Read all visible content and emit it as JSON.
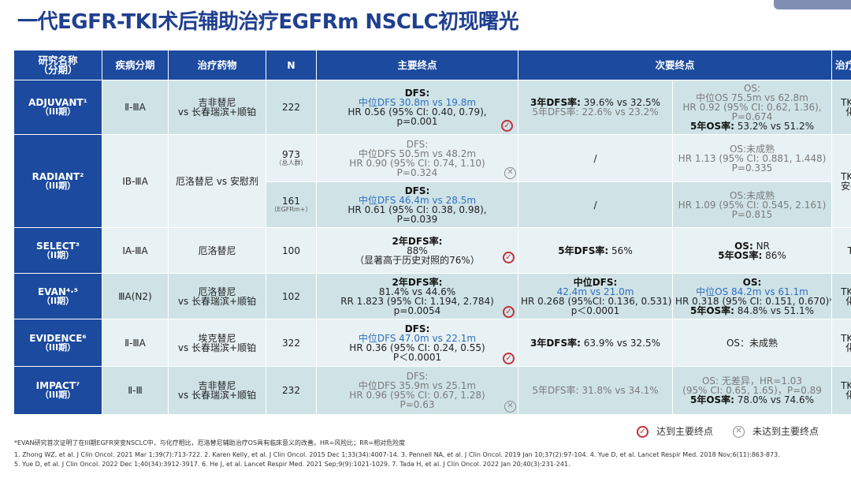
{
  "title": "一代EGFR-TKI术后辅助治疗EGFRm NSCLC初现曙光",
  "headers": {
    "study": [
      "研究名称",
      "（分期）"
    ],
    "stage": "疾病分期",
    "drug": "治疗药物",
    "n": "N",
    "primary": "主要终点",
    "secondary": "次要终点",
    "mode": "治疗模式"
  },
  "rows": {
    "adjuvant": {
      "name": "ADJUVANT¹",
      "phase": "（III期）",
      "stage": "Ⅱ-ⅢA",
      "drug": [
        "吉非替尼",
        "vs 长春瑞滨+顺铂"
      ],
      "n": "222",
      "primary": [
        "DFS:",
        "中位DFS 30.8m vs 19.8m",
        "HR 0.56 (95% CI: 0.40, 0.79),",
        "p=0.001"
      ],
      "sec1": [
        "3年DFS率:",
        "39.6% vs 32.5%"
      ],
      "sec1b": [
        "5年DFS率:",
        "22.6% vs 23.2%"
      ],
      "sec2": [
        "OS:",
        "中位OS 75.5m vs 62.8m",
        "HR 0.92 (95% CI: 0.62, 1.36),",
        "P=0.674"
      ],
      "sec2b": [
        "5年OS率:",
        "53.2% vs 51.2%"
      ],
      "mode": [
        "TKI vs",
        "化疗"
      ]
    },
    "radiant": {
      "name": "RADIANT²",
      "phase": "（III期）",
      "stage": "ⅠB-ⅢA",
      "drug": "厄洛替尼 vs 安慰剂",
      "mode": [
        "TKI vs",
        "安慰剂"
      ],
      "a": {
        "n": "973",
        "n_sub": "（总人群）",
        "primary": [
          "DFS:",
          "中位DFS 50.5m vs 48.2m",
          "HR 0.90 (95% CI: 0.74, 1.10)",
          "P=0.324"
        ],
        "sec1": "/",
        "sec2": [
          "OS:",
          "未成熟",
          "HR 1.13 (95% CI: 0.881, 1.448)",
          "P=0.335"
        ]
      },
      "b": {
        "n": "161",
        "n_sub": "（EGFRm+）",
        "primary": [
          "DFS:",
          "中位DFS 46.4m vs 28.5m",
          "HR 0.61 (95% CI: 0.38, 0.98),",
          "P=0.039"
        ],
        "sec1": "/",
        "sec2": [
          "OS:",
          "未成熟",
          "HR 1.09 (95% CI: 0.545, 2.161)",
          "P=0.815"
        ]
      }
    },
    "select": {
      "name": "SELECT³",
      "phase": "（II期）",
      "stage": "ⅠA-ⅢA",
      "drug": "厄洛替尼",
      "n": "100",
      "primary": [
        "2年DFS率:",
        "88%",
        "（显著高于历史对照的76%）"
      ],
      "sec1": [
        "5年DFS率:",
        "56%"
      ],
      "sec2a": [
        "OS:",
        "NR"
      ],
      "sec2b": [
        "5年OS率:",
        "86%"
      ],
      "mode": "TKI"
    },
    "evan": {
      "name": "EVAN⁴·⁵",
      "phase": "（II期）",
      "stage": "ⅢA(N2)",
      "drug": [
        "厄洛替尼",
        "vs 长春瑞滨+顺铂"
      ],
      "n": "102",
      "primary": [
        "2年DFS率:",
        "81.4% vs 44.6%",
        "RR 1.823 (95% CI: 1.194, 2.784)",
        "p=0.0054"
      ],
      "sec1": [
        "中位DFS:",
        "42.4m vs 21.0m",
        "HR 0.268 (95%CI: 0.136, 0.531),",
        "p＜0.0001"
      ],
      "sec2": [
        "OS:",
        "中位OS 84.2m vs 61.1m",
        "HR 0.318 (95% CI: 0.151, 0.670)*"
      ],
      "sec2b": [
        "5年OS率:",
        "84.8% vs 51.1%"
      ],
      "mode": [
        "TKI vs",
        "化疗"
      ]
    },
    "evidence": {
      "name": "EVIDENCE⁶",
      "phase": "（III期）",
      "stage": "Ⅱ-ⅢA",
      "drug": [
        "埃克替尼",
        "vs 长春瑞滨+顺铂"
      ],
      "n": "322",
      "primary": [
        "DFS:",
        "中位DFS 47.0m vs 22.1m",
        "HR 0.36 (95% CI: 0.24, 0.55)",
        "P＜0.0001"
      ],
      "sec1": [
        "3年DFS率:",
        "63.9% vs 32.5%"
      ],
      "sec2": "OS：未成熟",
      "mode": [
        "TKI vs",
        "化疗"
      ]
    },
    "impact": {
      "name": "IMPACT⁷",
      "phase": "（III期）",
      "stage": "Ⅱ-Ⅲ",
      "drug": [
        "吉非替尼",
        "vs 长春瑞滨+顺铂"
      ],
      "n": "232",
      "primary": [
        "DFS:",
        "中位DFS 35.9m vs 25.1m",
        "HR 0.96 (95% CI: 0.67, 1.28)",
        "P=0.63"
      ],
      "sec1": [
        "5年DFS率:",
        "31.8% vs 34.1%"
      ],
      "sec2": [
        "OS:",
        "无差异，HR=1.03",
        "(95% CI: 0.65, 1.65)，P=0.89"
      ],
      "sec2b": [
        "5年OS率:",
        "78.0% vs 74.6%"
      ],
      "mode": [
        "TKI vs",
        "化疗"
      ]
    }
  },
  "legend": {
    "met": "达到主要终点",
    "not_met": "未达到主要终点"
  },
  "icons": {
    "met": "check-circle-icon",
    "not_met": "cross-circle-icon"
  },
  "footnote": "*EVAN研究首次证明了在III期EGFR突变NSCLC中，与化疗相比，厄洛替尼辅助治疗OS具有临床意义的改善。HR=风险比；RR=相对危险度",
  "references": [
    "1. Zhong WZ, et al. J Clin Oncol. 2021 Mar 1;39(7):713-722.  2. Karen Kelly, et al. J Clin Oncol. 2015 Dec 1;33(34):4007-14.  3. Pennell NA, et al. J Clin Oncol. 2019 Jan 10;37(2):97-104. 4. Yue D, et al. Lancet Respir Med. 2018 Nov;6(11):863-873.",
    "5. Yue D, et al. J Clin Oncol. 2022 Dec 1;40(34):3912-3917.  6. He J, et al. Lancet Respir Med. 2021 Sep;9(9):1021-1029. 7. Tada H, et al. J Clin Oncol. 2022 Jan 20;40(3):231-241."
  ],
  "colors": {
    "header": "#1b4a9e",
    "row_alt": "#cfe3e7",
    "row_light": "#e8f1f3",
    "title": "#1f3f8f",
    "check": "#c0323a"
  }
}
